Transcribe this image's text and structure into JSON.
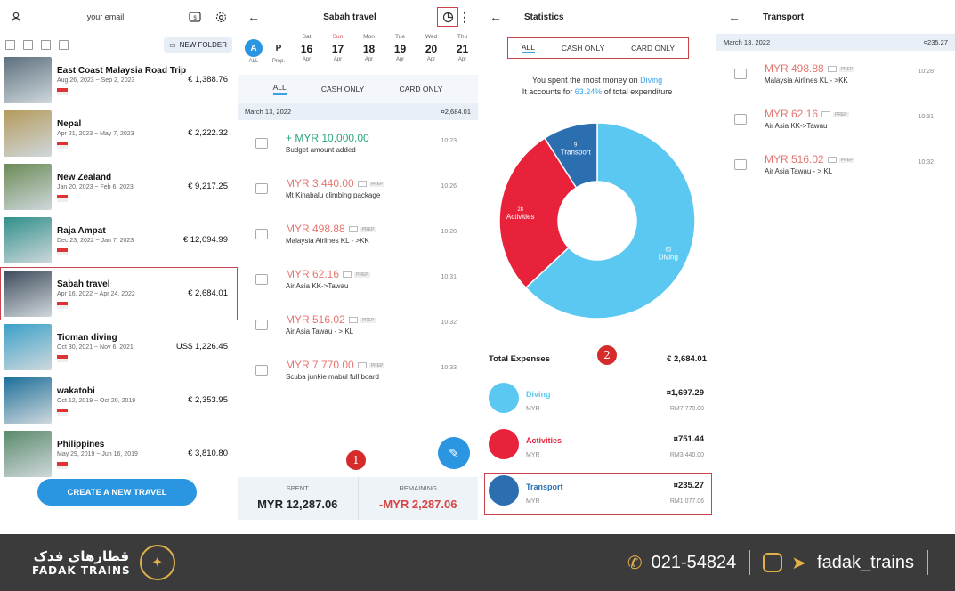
{
  "panel1": {
    "email": "your email",
    "new_folder": "NEW FOLDER",
    "create_button": "CREATE A NEW TRAVEL",
    "trips": [
      {
        "name": "East Coast Malaysia Road Trip",
        "dates": "Aug 26, 2023 ~ Sep 2, 2023",
        "amount": "€ 1,388.76",
        "thumb": "#5c6f7d"
      },
      {
        "name": "Nepal",
        "dates": "Apr 21, 2023 ~ May 7, 2023",
        "amount": "€ 2,222.32",
        "thumb": "#b59a5c"
      },
      {
        "name": "New Zealand",
        "dates": "Jan 20, 2023 ~ Feb 6, 2023",
        "amount": "€ 9,217.25",
        "thumb": "#6b8a55"
      },
      {
        "name": "Raja Ampat",
        "dates": "Dec 23, 2022 ~ Jan 7, 2023",
        "amount": "€ 12,094.99",
        "thumb": "#2f8f8a"
      },
      {
        "name": "Sabah travel",
        "dates": "Apr 16, 2022 ~ Apr 24, 2022",
        "amount": "€ 2,684.01",
        "thumb": "#3d4a5a"
      },
      {
        "name": "Tioman diving",
        "dates": "Oct 30, 2021 ~ Nov 6, 2021",
        "amount": "US$ 1,226.45",
        "thumb": "#3aa0c8"
      },
      {
        "name": "wakatobi",
        "dates": "Oct 12, 2019 ~ Oct 20, 2019",
        "amount": "€ 2,353.95",
        "thumb": "#1d6f9a"
      },
      {
        "name": "Philippines",
        "dates": "May 29, 2019 ~ Jun 16, 2019",
        "amount": "€ 3,810.80",
        "thumb": "#5a8a6a"
      }
    ]
  },
  "panel2": {
    "title": "Sabah travel",
    "all_label": "A",
    "all_sub": "ALL",
    "prep_label": "P",
    "prep_sub": "Prep.",
    "days": [
      {
        "w": "Sat",
        "d": "16",
        "m": "Apr"
      },
      {
        "w": "Sun",
        "d": "17",
        "m": "Apr"
      },
      {
        "w": "Mon",
        "d": "18",
        "m": "Apr"
      },
      {
        "w": "Tue",
        "d": "19",
        "m": "Apr"
      },
      {
        "w": "Wed",
        "d": "20",
        "m": "Apr"
      },
      {
        "w": "Thu",
        "d": "21",
        "m": "Apr"
      }
    ],
    "filters": [
      "ALL",
      "CASH ONLY",
      "CARD ONLY"
    ],
    "date": "March 13, 2022",
    "date_total": "¤2,684.01",
    "transactions": [
      {
        "amount": "+ MYR 10,000.00",
        "desc": "Budget amount added",
        "time": "10:23",
        "type": "pos"
      },
      {
        "amount": "MYR 3,440.00",
        "desc": "Mt Kinabalu climbing package",
        "time": "10:26",
        "type": "neg"
      },
      {
        "amount": "MYR 498.88",
        "desc": "Malaysia Airlines KL - >KK",
        "time": "10:28",
        "type": "neg"
      },
      {
        "amount": "MYR 62.16",
        "desc": "Air Asia KK->Tawau",
        "time": "10:31",
        "type": "neg"
      },
      {
        "amount": "MYR 516.02",
        "desc": "Air Asia Tawau - > KL",
        "time": "10:32",
        "type": "neg"
      },
      {
        "amount": "MYR 7,770.00",
        "desc": "Scuba junkie mabul full board",
        "time": "10:33",
        "type": "neg"
      }
    ],
    "prep_tag": "PREP",
    "marker": "1",
    "spent_label": "SPENT",
    "spent": "MYR 12,287.06",
    "remaining_label": "REMAINING",
    "remaining": "-MYR 2,287.06"
  },
  "panel3": {
    "title": "Statistics",
    "filters": [
      "ALL",
      "CASH ONLY",
      "CARD ONLY"
    ],
    "summary1": "You spent the most money on ",
    "summary1_hl": "Diving",
    "summary2a": "It accounts for ",
    "summary2_hl": "63.24%",
    "summary2b": " of total expenditure",
    "chart_data": {
      "type": "pie",
      "categories": [
        "Diving",
        "Activities",
        "Transport"
      ],
      "values": [
        63,
        28,
        9
      ],
      "colors": [
        "#5bc8f2",
        "#e8223a",
        "#2c6fb0"
      ]
    },
    "total_label": "Total Expenses",
    "total": "€ 2,684.01",
    "marker": "2",
    "categories": [
      {
        "name": "Diving",
        "currency": "MYR",
        "amount": "¤1,697.29",
        "local": "RM7,770.00",
        "color": "#5bc8f2"
      },
      {
        "name": "Activities",
        "currency": "MYR",
        "amount": "¤751.44",
        "local": "RM3,440.00",
        "color": "#e8223a"
      },
      {
        "name": "Transport",
        "currency": "MYR",
        "amount": "¤235.27",
        "local": "RM1,077.06",
        "color": "#2c6fb0"
      }
    ]
  },
  "panel4": {
    "title": "Transport",
    "date": "March 13, 2022",
    "date_total": "¤235.27",
    "transactions": [
      {
        "amount": "MYR 498.88",
        "desc": "Malaysia Airlines KL - >KK",
        "time": "10:28"
      },
      {
        "amount": "MYR 62.16",
        "desc": "Air Asia KK->Tawau",
        "time": "10:31"
      },
      {
        "amount": "MYR 516.02",
        "desc": "Air Asia Tawau - > KL",
        "time": "10:32"
      }
    ]
  },
  "footer": {
    "brand_fa": "قطارهای فدک",
    "brand_en": "FADAK TRAINS",
    "phone": "021-54824",
    "handle": "fadak_trains"
  }
}
